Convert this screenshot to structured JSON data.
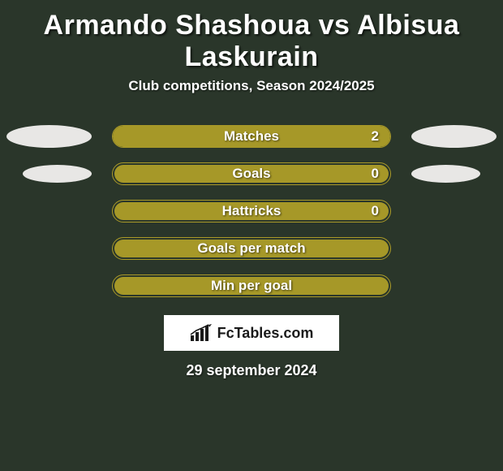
{
  "title": "Armando Shashoua vs Albisua Laskurain",
  "subtitle": "Club competitions, Season 2024/2025",
  "date_text": "29 september 2024",
  "logo_text": "FcTables.com",
  "colors": {
    "background": "#2a362a",
    "bar_border": "#aa9a28",
    "bar_fill": "#a69828",
    "ellipse": "#e8e7e5",
    "text": "#ffffff",
    "logo_bg": "#ffffff",
    "logo_text": "#1a1a1a"
  },
  "bars": [
    {
      "label": "Matches",
      "value": "2",
      "show_value": true,
      "fill_mode": "full",
      "left_ellipse": "outer",
      "right_ellipse": "outer"
    },
    {
      "label": "Goals",
      "value": "0",
      "show_value": true,
      "fill_mode": "inset",
      "left_ellipse": "inner",
      "right_ellipse": "inner"
    },
    {
      "label": "Hattricks",
      "value": "0",
      "show_value": true,
      "fill_mode": "inset",
      "left_ellipse": "none",
      "right_ellipse": "none"
    },
    {
      "label": "Goals per match",
      "value": "",
      "show_value": false,
      "fill_mode": "inset",
      "left_ellipse": "none",
      "right_ellipse": "none"
    },
    {
      "label": "Min per goal",
      "value": "",
      "show_value": false,
      "fill_mode": "inset",
      "left_ellipse": "none",
      "right_ellipse": "none"
    }
  ]
}
